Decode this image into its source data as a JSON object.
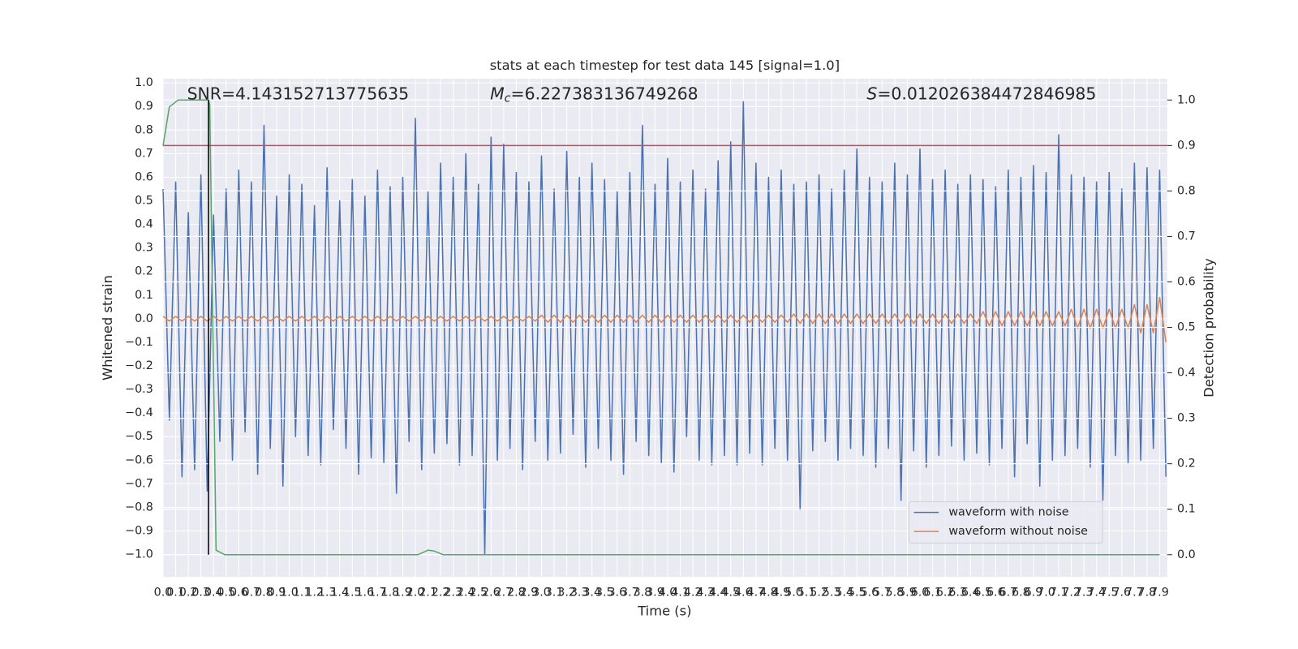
{
  "chart_data": {
    "type": "line",
    "title": "stats at each timestep for test data 145 [signal=1.0]",
    "xlabel": "Time (s)",
    "ylabel": "Whitened strain",
    "y2label": "Detection probability",
    "annotations": [
      {
        "text": "SNR=4.143152713775635"
      },
      {
        "symbol": "M",
        "subscript": "c",
        "text": "=6.227383136749268"
      },
      {
        "symbol": "S",
        "text": "=0.012026384472846985"
      }
    ],
    "x": [
      0,
      0.05,
      0.1,
      0.15,
      0.2,
      0.25,
      0.3,
      0.35,
      0.4,
      0.45,
      0.5,
      0.55,
      0.6,
      0.65,
      0.7,
      0.75,
      0.8,
      0.85,
      0.9,
      0.95,
      1,
      1.05,
      1.1,
      1.15,
      1.2,
      1.25,
      1.3,
      1.35,
      1.4,
      1.45,
      1.5,
      1.55,
      1.6,
      1.65,
      1.7,
      1.75,
      1.8,
      1.85,
      1.9,
      1.95,
      2,
      2.05,
      2.1,
      2.15,
      2.2,
      2.25,
      2.3,
      2.35,
      2.4,
      2.45,
      2.5,
      2.55,
      2.6,
      2.65,
      2.7,
      2.75,
      2.8,
      2.85,
      2.9,
      2.95,
      3,
      3.05,
      3.1,
      3.15,
      3.2,
      3.25,
      3.3,
      3.35,
      3.4,
      3.45,
      3.5,
      3.55,
      3.6,
      3.65,
      3.7,
      3.75,
      3.8,
      3.85,
      3.9,
      3.95,
      4,
      4.05,
      4.1,
      4.15,
      4.2,
      4.25,
      4.3,
      4.35,
      4.4,
      4.45,
      4.5,
      4.55,
      4.6,
      4.65,
      4.7,
      4.75,
      4.8,
      4.85,
      4.9,
      4.95,
      5,
      5.05,
      5.1,
      5.15,
      5.2,
      5.25,
      5.3,
      5.35,
      5.4,
      5.45,
      5.5,
      5.55,
      5.6,
      5.65,
      5.7,
      5.75,
      5.8,
      5.85,
      5.9,
      5.95,
      6,
      6.05,
      6.1,
      6.15,
      6.2,
      6.25,
      6.3,
      6.35,
      6.4,
      6.45,
      6.5,
      6.55,
      6.6,
      6.65,
      6.7,
      6.75,
      6.8,
      6.85,
      6.9,
      6.95,
      7,
      7.05,
      7.1,
      7.15,
      7.2,
      7.25,
      7.3,
      7.35,
      7.4,
      7.45,
      7.5,
      7.55,
      7.6,
      7.65,
      7.7,
      7.75,
      7.8,
      7.85,
      7.9,
      7.95
    ],
    "series": [
      {
        "name": "waveform with noise",
        "color": "#4c72b0",
        "values": [
          0.55,
          -0.43,
          0.58,
          -0.67,
          0.45,
          -0.64,
          0.61,
          -0.73,
          0.44,
          -0.52,
          0.55,
          -0.6,
          0.63,
          -0.48,
          0.58,
          -0.66,
          0.82,
          -0.55,
          0.52,
          -0.71,
          0.61,
          -0.5,
          0.57,
          -0.58,
          0.48,
          -0.62,
          0.64,
          -0.47,
          0.5,
          -0.55,
          0.59,
          -0.66,
          0.52,
          -0.59,
          0.63,
          -0.61,
          0.56,
          -0.74,
          0.6,
          -0.52,
          0.85,
          -0.64,
          0.54,
          -0.57,
          0.66,
          -0.53,
          0.6,
          -0.62,
          0.7,
          -0.58,
          0.57,
          -1.0,
          0.77,
          -0.6,
          0.74,
          -0.55,
          0.62,
          -0.64,
          0.58,
          -0.52,
          0.69,
          -0.6,
          0.55,
          -0.57,
          0.71,
          -0.49,
          0.6,
          -0.63,
          0.66,
          -0.55,
          0.59,
          -0.6,
          0.54,
          -0.66,
          0.62,
          -0.52,
          0.82,
          -0.58,
          0.57,
          -0.61,
          0.68,
          -0.65,
          0.58,
          -0.5,
          0.63,
          -0.6,
          0.55,
          -0.62,
          0.67,
          -0.58,
          0.75,
          -0.62,
          0.92,
          -0.57,
          0.66,
          -0.62,
          0.6,
          -0.55,
          0.63,
          -0.6,
          0.57,
          -0.81,
          0.58,
          -0.56,
          0.61,
          -0.52,
          0.55,
          -0.6,
          0.63,
          -0.55,
          0.72,
          -0.58,
          0.6,
          -0.63,
          0.58,
          -0.55,
          0.66,
          -0.77,
          0.61,
          -0.56,
          0.72,
          -0.63,
          0.59,
          -0.58,
          0.63,
          -0.54,
          0.57,
          -0.6,
          0.61,
          -0.57,
          0.59,
          -0.62,
          0.56,
          -0.55,
          0.63,
          -0.67,
          0.6,
          -0.53,
          0.65,
          -0.71,
          0.62,
          -0.6,
          0.78,
          -0.58,
          0.61,
          -0.55,
          0.6,
          -0.63,
          0.58,
          -0.77,
          0.62,
          -0.58,
          0.55,
          -0.61,
          0.66,
          -0.6,
          0.64,
          -0.55,
          0.63,
          -0.67
        ]
      },
      {
        "name": "waveform without noise",
        "color": "#dd8452",
        "values": [
          0.01,
          -0.01,
          0.01,
          -0.01,
          0.01,
          -0.01,
          0.01,
          -0.01,
          0.01,
          -0.01,
          0.01,
          -0.01,
          0.01,
          -0.01,
          0.01,
          -0.01,
          0.01,
          -0.01,
          0.01,
          -0.01,
          0.01,
          -0.01,
          0.01,
          -0.01,
          0.01,
          -0.01,
          0.01,
          -0.01,
          0.01,
          -0.01,
          0.01,
          -0.01,
          0.01,
          -0.01,
          0.01,
          -0.01,
          0.01,
          -0.01,
          0.01,
          -0.01,
          0.01,
          -0.01,
          0.01,
          -0.01,
          0.01,
          -0.01,
          0.01,
          -0.01,
          0.01,
          -0.01,
          0.01,
          -0.01,
          0.01,
          -0.01,
          0.01,
          -0.01,
          0.01,
          -0.01,
          0.01,
          -0.01,
          0.015,
          -0.015,
          0.015,
          -0.015,
          0.015,
          -0.015,
          0.015,
          -0.015,
          0.015,
          -0.015,
          0.015,
          -0.015,
          0.015,
          -0.015,
          0.015,
          -0.015,
          0.015,
          -0.015,
          0.015,
          -0.015,
          0.015,
          -0.015,
          0.015,
          -0.015,
          0.015,
          -0.015,
          0.015,
          -0.015,
          0.015,
          -0.015,
          0.015,
          -0.015,
          0.015,
          -0.015,
          0.015,
          -0.015,
          0.015,
          -0.015,
          0.015,
          -0.015,
          0.02,
          -0.02,
          0.02,
          -0.02,
          0.02,
          -0.02,
          0.02,
          -0.02,
          0.02,
          -0.02,
          0.02,
          -0.02,
          0.02,
          -0.02,
          0.02,
          -0.02,
          0.02,
          -0.02,
          0.02,
          -0.02,
          0.02,
          -0.02,
          0.02,
          -0.02,
          0.02,
          -0.02,
          0.02,
          -0.02,
          0.02,
          -0.02,
          0.03,
          -0.03,
          0.03,
          -0.03,
          0.03,
          -0.03,
          0.03,
          -0.03,
          0.03,
          -0.03,
          0.03,
          -0.03,
          0.03,
          -0.03,
          0.04,
          -0.04,
          0.04,
          -0.04,
          0.04,
          -0.04,
          0.04,
          -0.04,
          0.04,
          -0.04,
          0.06,
          -0.06,
          0.06,
          -0.06,
          0.09,
          -0.1
        ]
      },
      {
        "color": "#55a868",
        "axis": "y2",
        "x": [
          0,
          0.05,
          0.12,
          0.36,
          0.37,
          0.42,
          0.49,
          2.02,
          2.1,
          2.15,
          2.22,
          7.9
        ],
        "values": [
          0.9,
          0.985,
          1.0,
          1.0,
          0.99,
          0.01,
          0.0,
          0.0,
          0.01,
          0.008,
          0.0,
          0.0
        ]
      }
    ],
    "hlines": [
      {
        "y": 0.9,
        "axis": "y2",
        "color": "#c44e52"
      }
    ],
    "vlines": [
      {
        "x": 0.36,
        "axis": "y2",
        "from": 0,
        "to": 1,
        "color": "#000000"
      }
    ],
    "xlim": [
      0,
      7.96
    ],
    "ylim": [
      -1.095,
      1.018
    ],
    "y2lim": [
      -0.049,
      1.047
    ],
    "xticks": [
      {
        "value": 0,
        "label": "0.0"
      },
      0.1,
      0.2,
      0.3,
      0.4,
      0.5,
      0.6,
      0.7,
      0.8,
      0.9,
      {
        "value": 1,
        "label": "1.0"
      },
      1.1,
      1.2,
      1.3,
      1.4,
      1.5,
      1.6,
      1.7,
      1.8,
      1.9,
      {
        "value": 2,
        "label": "2.0"
      },
      2.1,
      2.2,
      2.3,
      2.4,
      2.5,
      2.6,
      2.7,
      2.8,
      2.9,
      {
        "value": 3,
        "label": "3.0"
      },
      3.1,
      3.2,
      3.3,
      3.4,
      3.5,
      3.6,
      3.7,
      3.8,
      3.9,
      {
        "value": 4,
        "label": "4.0"
      },
      4.1,
      4.2,
      4.3,
      4.4,
      4.5,
      4.6,
      4.7,
      4.8,
      4.9,
      {
        "value": 5,
        "label": "5.0"
      },
      5.1,
      5.2,
      5.3,
      5.4,
      5.5,
      5.6,
      5.7,
      5.8,
      5.9,
      {
        "value": 6,
        "label": "6.0"
      },
      6.1,
      6.2,
      6.3,
      6.4,
      6.5,
      6.6,
      6.7,
      6.8,
      6.9,
      {
        "value": 7,
        "label": "7.0"
      },
      7.1,
      7.2,
      7.3,
      7.4,
      7.5,
      7.6,
      7.7,
      7.8,
      7.9
    ],
    "yticks": [
      {
        "value": -1,
        "label": "−1.0"
      },
      {
        "value": -0.9,
        "label": "−0.9"
      },
      {
        "value": -0.8,
        "label": "−0.8"
      },
      {
        "value": -0.7,
        "label": "−0.7"
      },
      {
        "value": -0.6,
        "label": "−0.6"
      },
      {
        "value": -0.5,
        "label": "−0.5"
      },
      {
        "value": -0.4,
        "label": "−0.4"
      },
      {
        "value": -0.3,
        "label": "−0.3"
      },
      {
        "value": -0.2,
        "label": "−0.2"
      },
      {
        "value": -0.1,
        "label": "−0.1"
      },
      {
        "value": 0,
        "label": "0.0"
      },
      0.1,
      0.2,
      0.3,
      0.4,
      0.5,
      0.6,
      0.7,
      0.8,
      0.9,
      {
        "value": 1,
        "label": "1.0"
      }
    ],
    "y2ticks": [
      {
        "value": 0,
        "label": "0.0"
      },
      0.1,
      0.2,
      0.3,
      0.4,
      0.5,
      0.6,
      0.7,
      0.8,
      0.9,
      {
        "value": 1,
        "label": "1.0"
      }
    ],
    "grid": true,
    "legend": "lower right"
  }
}
